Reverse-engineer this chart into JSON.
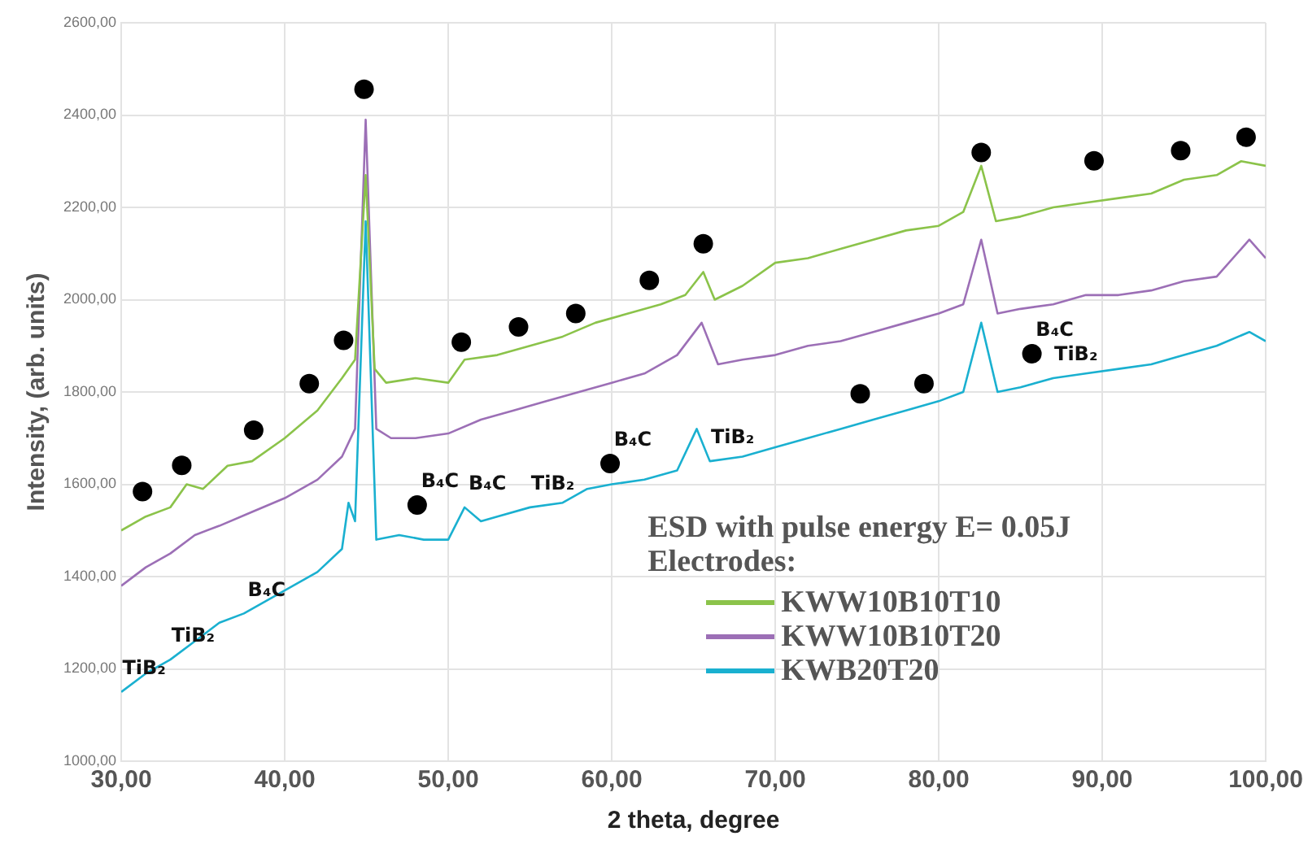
{
  "chart_data": {
    "type": "line",
    "xlabel": "2 theta, degree",
    "ylabel": "Intensity, (arb. units)",
    "legend_title": "ESD with pulse energy  E= 0.05J\nElectrodes:",
    "xlim": [
      30,
      100
    ],
    "xticks": [
      {
        "value": 30,
        "label": "30,00"
      },
      {
        "value": 40,
        "label": "40,00"
      },
      {
        "value": 50,
        "label": "50,00"
      },
      {
        "value": 60,
        "label": "60,00"
      },
      {
        "value": 70,
        "label": "70,00"
      },
      {
        "value": 80,
        "label": "80,00"
      },
      {
        "value": 90,
        "label": "90,00"
      },
      {
        "value": 100,
        "label": "100,00"
      }
    ],
    "ylim": [
      1000,
      2600
    ],
    "yticks": [
      {
        "value": 1000,
        "label": "1000,00"
      },
      {
        "value": 1200,
        "label": "1200,00"
      },
      {
        "value": 1400,
        "label": "1400,00"
      },
      {
        "value": 1600,
        "label": "1600,00"
      },
      {
        "value": 1800,
        "label": "1800,00"
      },
      {
        "value": 2000,
        "label": "2000,00"
      },
      {
        "value": 2200,
        "label": "2200,00"
      },
      {
        "value": 2400,
        "label": "2400,00"
      },
      {
        "value": 2600,
        "label": "2600,00"
      }
    ],
    "grid": true,
    "legend": "bottom",
    "line_style": "solid",
    "series": [
      {
        "name": "KWW10B10T10",
        "type": "line",
        "marker": "none",
        "color": "#8bc34a",
        "x": [
          30,
          31.5,
          33,
          34,
          35,
          36.5,
          38,
          40,
          42,
          43.5,
          44.3,
          44.95,
          45.5,
          46.2,
          48,
          50,
          51,
          53,
          55,
          57,
          59,
          61,
          63,
          64.5,
          65.6,
          66.3,
          68,
          70,
          72,
          74,
          76,
          78,
          80,
          81.5,
          82.6,
          83.5,
          85,
          87,
          89,
          91,
          93,
          95,
          97,
          98.5,
          100
        ],
        "values": [
          1500,
          1530,
          1550,
          1600,
          1590,
          1640,
          1650,
          1700,
          1760,
          1830,
          1870,
          2270,
          1850,
          1820,
          1830,
          1820,
          1870,
          1880,
          1900,
          1920,
          1950,
          1970,
          1990,
          2010,
          2060,
          2000,
          2030,
          2080,
          2090,
          2110,
          2130,
          2150,
          2160,
          2190,
          2290,
          2170,
          2180,
          2200,
          2210,
          2220,
          2230,
          2260,
          2270,
          2300,
          2290
        ]
      },
      {
        "name": "KWW10B10T20",
        "type": "line",
        "marker": "none",
        "color": "#9c6fb6",
        "x": [
          30,
          31.5,
          33,
          34.5,
          36,
          38,
          40,
          42,
          43.5,
          44.3,
          44.95,
          45.6,
          46.5,
          48,
          50,
          52,
          54,
          56,
          58,
          60,
          62,
          64,
          65.5,
          66.5,
          68,
          70,
          72,
          74,
          76,
          78,
          80,
          81.5,
          82.6,
          83.6,
          85,
          87,
          89,
          91,
          93,
          95,
          97,
          99,
          100
        ],
        "values": [
          1380,
          1420,
          1450,
          1490,
          1510,
          1540,
          1570,
          1610,
          1660,
          1720,
          2390,
          1720,
          1700,
          1700,
          1710,
          1740,
          1760,
          1780,
          1800,
          1820,
          1840,
          1880,
          1950,
          1860,
          1870,
          1880,
          1900,
          1910,
          1930,
          1950,
          1970,
          1990,
          2130,
          1970,
          1980,
          1990,
          2010,
          2010,
          2020,
          2040,
          2050,
          2130,
          2090
        ]
      },
      {
        "name": "KWB20T20",
        "type": "line",
        "marker": "none",
        "color": "#1ab0d0",
        "x": [
          30,
          31.5,
          33,
          34.5,
          36,
          37.5,
          39,
          40.5,
          42,
          43.5,
          43.9,
          44.3,
          44.95,
          45.6,
          47,
          48.5,
          50,
          51,
          52,
          53,
          55,
          57,
          58.5,
          60,
          62,
          64,
          65.2,
          66,
          68,
          70,
          72,
          74,
          76,
          78,
          80,
          81.5,
          82.6,
          83.6,
          85,
          87,
          89,
          91,
          93,
          95,
          97,
          99,
          100
        ],
        "values": [
          1150,
          1190,
          1220,
          1260,
          1300,
          1320,
          1350,
          1380,
          1410,
          1460,
          1560,
          1520,
          2170,
          1480,
          1490,
          1480,
          1480,
          1550,
          1520,
          1530,
          1550,
          1560,
          1590,
          1600,
          1610,
          1630,
          1720,
          1650,
          1660,
          1680,
          1700,
          1720,
          1740,
          1760,
          1780,
          1800,
          1950,
          1800,
          1810,
          1830,
          1840,
          1850,
          1860,
          1880,
          1900,
          1930,
          1910
        ]
      },
      {
        "type": "scatter",
        "marker": "circle",
        "color": "#000000",
        "x": [
          31.3,
          33.7,
          38.1,
          41.5,
          43.6,
          44.85,
          48.1,
          50.8,
          54.3,
          57.8,
          59.9,
          62.3,
          65.6,
          75.2,
          79.1,
          82.6,
          85.7,
          89.5,
          94.8,
          98.8
        ],
        "values": [
          1584,
          1641,
          1717,
          1818,
          1912,
          2456,
          1555,
          1908,
          1941,
          1970,
          1645,
          2042,
          2121,
          1796,
          1818,
          2319,
          1883,
          2301,
          2323,
          2352
        ]
      }
    ],
    "annotations": [
      {
        "text": "TiB₂",
        "x": 30,
        "y": 1150
      },
      {
        "text": "TiB₂",
        "x": 33,
        "y": 1220
      },
      {
        "text": "B₄C",
        "x": 37.5,
        "y": 1320
      },
      {
        "text": "B₄C",
        "x": 48.1,
        "y": 1555
      },
      {
        "text": "B₄C",
        "x": 51,
        "y": 1550
      },
      {
        "text": "TiB₂",
        "x": 55,
        "y": 1550
      },
      {
        "text": "B₄C",
        "x": 59.9,
        "y": 1645
      },
      {
        "text": "TiB₂",
        "x": 66,
        "y": 1650
      },
      {
        "text": "B₄C",
        "x": 85.7,
        "y": 1883
      },
      {
        "text": "TiB₂",
        "x": 87,
        "y": 1830
      }
    ]
  }
}
